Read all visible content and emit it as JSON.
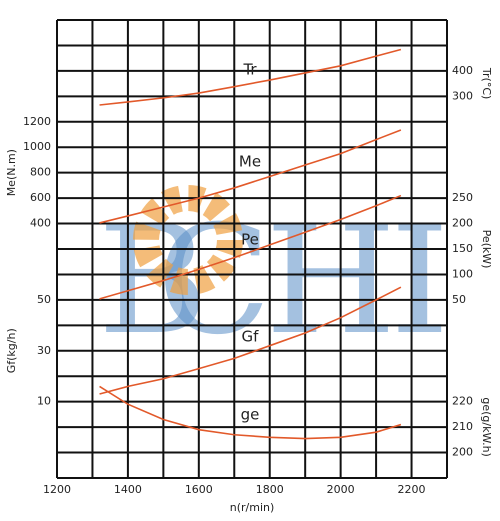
{
  "chart_data": {
    "type": "line",
    "xlabel": "n(r/min)",
    "xlim": [
      1200,
      2300
    ],
    "xticks": [
      1200,
      1400,
      1600,
      1800,
      2000,
      2200
    ],
    "xgrid": [
      1200,
      1300,
      1400,
      1500,
      1600,
      1700,
      1800,
      1900,
      2000,
      2100,
      2200,
      2300
    ],
    "grid": true,
    "color": "#e2592a",
    "watermark": [
      "B",
      "CHI"
    ],
    "x": [
      1320,
      1400,
      1500,
      1600,
      1700,
      1800,
      1900,
      2000,
      2100,
      2170
    ],
    "axes": [
      {
        "label": "Tr(°C)",
        "side": "right",
        "lim": [
          -1200,
          600
        ],
        "ticks": [
          300,
          400
        ]
      },
      {
        "label": "Me(N.m)",
        "side": "left",
        "lim": [
          -1600,
          2000
        ],
        "ticks": [
          400,
          600,
          800,
          1000,
          1200
        ]
      },
      {
        "label": "Pe(kW)",
        "side": "right",
        "lim": [
          -300,
          600
        ],
        "ticks": [
          50,
          100,
          150,
          200,
          250
        ]
      },
      {
        "label": "Gf(kg/h)",
        "side": "left",
        "lim": [
          -20,
          160
        ],
        "ticks": [
          10,
          30,
          50
        ]
      },
      {
        "label": "ge(g/kW.h)",
        "side": "right",
        "lim": [
          190,
          370
        ],
        "ticks": [
          200,
          210,
          220
        ],
        "grid": [
          190,
          200,
          210,
          220,
          230,
          240,
          250,
          260,
          270,
          280,
          290,
          300,
          310,
          320,
          330,
          340,
          350,
          360,
          370
        ]
      }
    ],
    "series": [
      {
        "name": "Tr",
        "axis": 0,
        "values": [
          266,
          278,
          294,
          313,
          338,
          364,
          392,
          420,
          458,
          484
        ]
      },
      {
        "name": "Me",
        "axis": 1,
        "values": [
          405,
          460,
          530,
          600,
          680,
          770,
          860,
          950,
          1060,
          1135
        ]
      },
      {
        "name": "Pe",
        "axis": 2,
        "values": [
          52,
          68,
          88,
          110,
          133,
          158,
          183,
          208,
          235,
          255
        ]
      },
      {
        "name": "Gf",
        "axis": 3,
        "values": [
          13,
          16,
          19,
          23,
          27,
          32,
          37,
          43,
          50,
          55
        ]
      },
      {
        "name": "ge",
        "axis": 4,
        "values": [
          226,
          219,
          213,
          209,
          207,
          206,
          205.5,
          206,
          208,
          211
        ]
      }
    ]
  }
}
